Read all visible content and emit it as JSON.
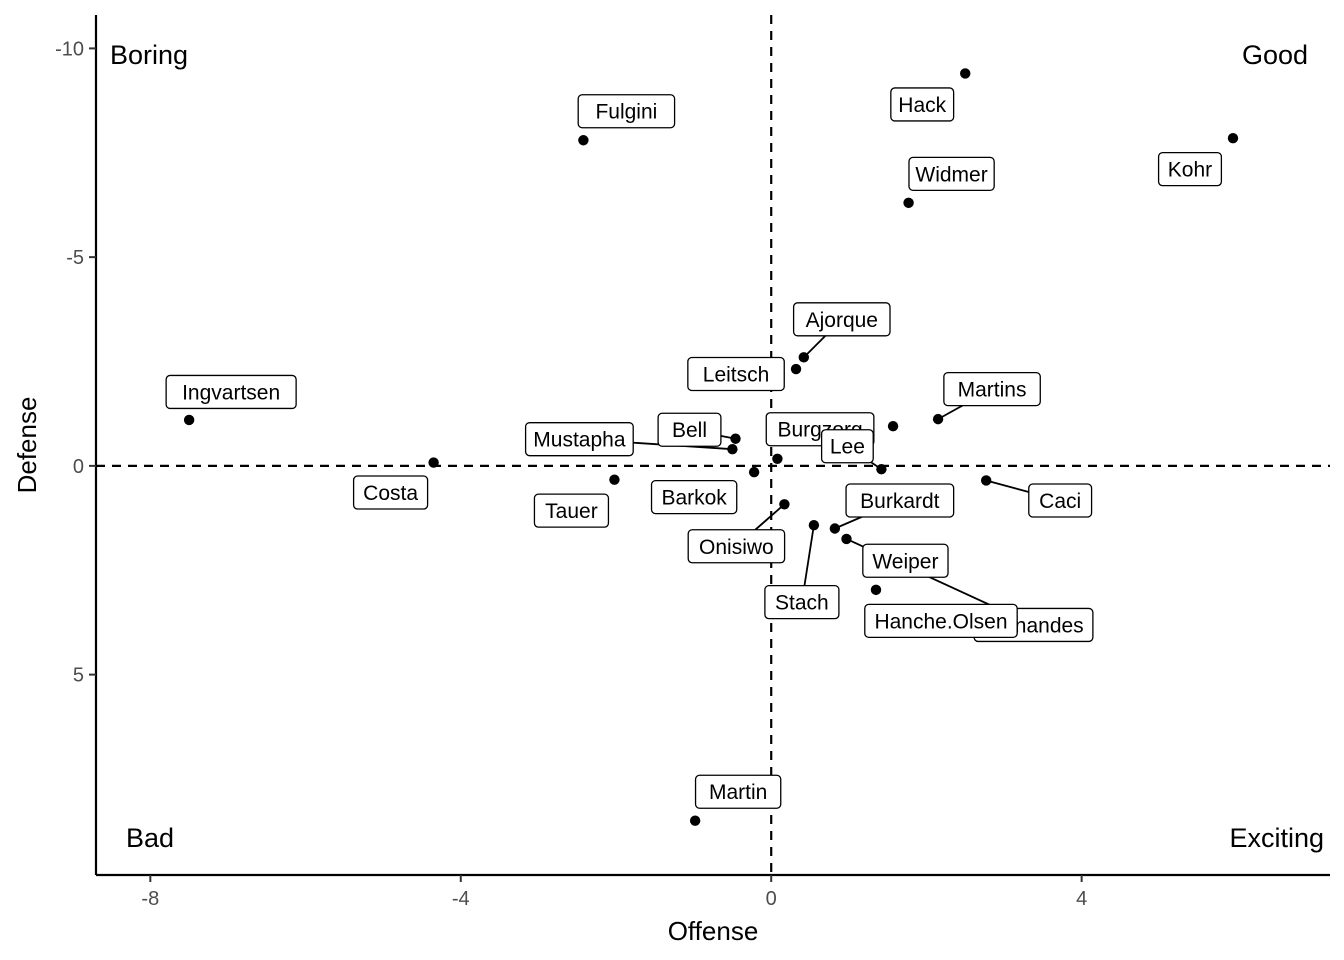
{
  "chart_data": {
    "type": "scatter",
    "xlabel": "Offense",
    "ylabel": "Defense",
    "xlim": [
      -8.7,
      7.2
    ],
    "ylim": [
      9.8,
      -10.8
    ],
    "y_axis_reversed": true,
    "x_ticks": [
      {
        "value": -8,
        "label": "-8"
      },
      {
        "value": -4,
        "label": "-4"
      },
      {
        "value": 0,
        "label": "0"
      },
      {
        "value": 4,
        "label": "4"
      }
    ],
    "y_ticks": [
      {
        "value": -10,
        "label": "-10"
      },
      {
        "value": -5,
        "label": "-5"
      },
      {
        "value": 0,
        "label": "0"
      },
      {
        "value": 5,
        "label": "5"
      }
    ],
    "reference_lines": {
      "x": 0,
      "y": 0,
      "style": "dashed"
    },
    "grid": false,
    "quadrant_labels": [
      {
        "text": "Boring",
        "corner": "top-left"
      },
      {
        "text": "Good",
        "corner": "top-right"
      },
      {
        "text": "Bad",
        "corner": "bottom-left"
      },
      {
        "text": "Exciting",
        "corner": "bottom-right"
      }
    ],
    "points": [
      {
        "label": "Hack",
        "x": 2.5,
        "y": -9.4
      },
      {
        "label": "Kohr",
        "x": 5.95,
        "y": -7.85
      },
      {
        "label": "Fulgini",
        "x": -2.42,
        "y": -7.8
      },
      {
        "label": "Widmer",
        "x": 1.77,
        "y": -6.3
      },
      {
        "label": "Ajorque",
        "x": 0.42,
        "y": -2.6
      },
      {
        "label": "Leitsch",
        "x": 0.32,
        "y": -2.32
      },
      {
        "label": "Ingvartsen",
        "x": -7.5,
        "y": -1.1
      },
      {
        "label": "Martins",
        "x": 2.15,
        "y": -1.12
      },
      {
        "label": "Burgzorg",
        "x": 1.57,
        "y": -0.95
      },
      {
        "label": "Bell",
        "x": -0.46,
        "y": -0.65
      },
      {
        "label": "Mustapha",
        "x": -0.5,
        "y": -0.4
      },
      {
        "label": "Lee",
        "x": 1.42,
        "y": 0.08
      },
      {
        "label": "Costa",
        "x": -4.35,
        "y": -0.08
      },
      {
        "label": "Barkok",
        "x": -0.22,
        "y": 0.15
      },
      {
        "label": "Tauer",
        "x": -2.02,
        "y": 0.33
      },
      {
        "label": "Caci",
        "x": 2.77,
        "y": 0.35
      },
      {
        "label": "Onisiwo",
        "x": 0.17,
        "y": 0.92
      },
      {
        "label": "Stach",
        "x": 0.55,
        "y": 1.42
      },
      {
        "label": "Burkardt",
        "x": 0.82,
        "y": 1.5
      },
      {
        "label": "Fernandes",
        "x": 0.97,
        "y": 1.75
      },
      {
        "label": "Hanche.Olsen",
        "x": 1.35,
        "y": 2.97
      },
      {
        "label": "Weiper",
        "x": 0.08,
        "y": -0.17
      },
      {
        "label": "Martin",
        "x": -0.98,
        "y": 8.5
      }
    ]
  }
}
